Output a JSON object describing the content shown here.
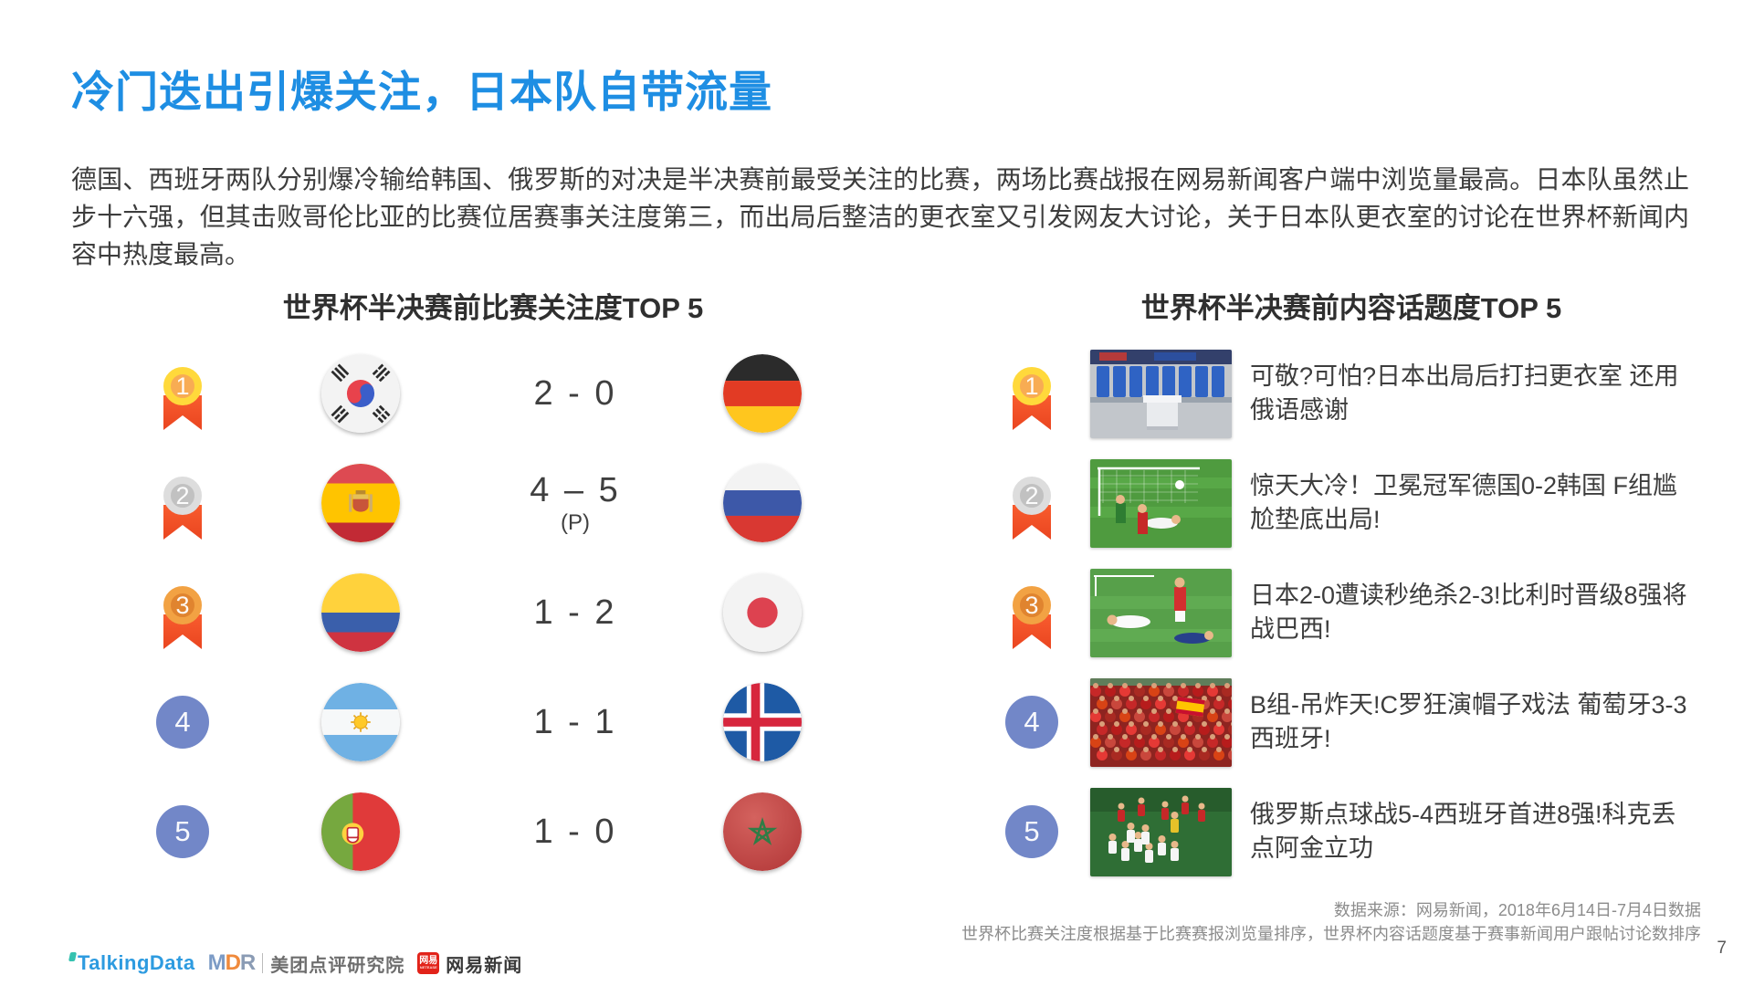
{
  "colors": {
    "title_blue": "#1e8ee3",
    "medal_gold_ring": "#ffd93b",
    "medal_gold_fill": "#f8ac53",
    "medal_silver_ring": "#dddddd",
    "medal_silver_fill": "#c1c1c1",
    "medal_bronze_ring": "#f2a243",
    "medal_bronze_fill": "#e0842f",
    "medal_plain_blue": "#7287c8",
    "ribbon_orange": "#f4502b",
    "netease_red": "#e2231a",
    "talkingdata_blue": "#2d9be0"
  },
  "slide": {
    "title": "冷门迭出引爆关注，日本队自带流量",
    "body": "德国、西班牙两队分别爆冷输给韩国、俄罗斯的对决是半决赛前最受关注的比赛，两场比赛战报在网易新闻客户端中浏览量最高。日本队虽然止步十六强，但其击败哥伦比亚的比赛位居赛事关注度第三，而出局后整洁的更衣室又引发网友大讨论，关于日本队更衣室的讨论在世界杯新闻内容中热度最高。",
    "page_number": "7"
  },
  "left_panel": {
    "title": "世界杯半决赛前比赛关注度TOP 5",
    "rows": [
      {
        "rank": "1",
        "home_flag": "south-korea",
        "home_team": "韩国",
        "score": "2 - 0",
        "score_note": "",
        "away_flag": "germany",
        "away_team": "德国"
      },
      {
        "rank": "2",
        "home_flag": "spain",
        "home_team": "西班牙",
        "score": "4 – 5",
        "score_note": "(P)",
        "away_flag": "russia",
        "away_team": "俄罗斯"
      },
      {
        "rank": "3",
        "home_flag": "colombia",
        "home_team": "哥伦比亚",
        "score": "1 - 2",
        "score_note": "",
        "away_flag": "japan",
        "away_team": "日本"
      },
      {
        "rank": "4",
        "home_flag": "argentina",
        "home_team": "阿根廷",
        "score": "1 - 1",
        "score_note": "",
        "away_flag": "iceland",
        "away_team": "冰岛"
      },
      {
        "rank": "5",
        "home_flag": "portugal",
        "home_team": "葡萄牙",
        "score": "1 - 0",
        "score_note": "",
        "away_flag": "morocco",
        "away_team": "摩洛哥"
      }
    ]
  },
  "right_panel": {
    "title": "世界杯半决赛前内容话题度TOP 5",
    "rows": [
      {
        "rank": "1",
        "image": "locker-room",
        "headline": "可敬?可怕?日本出局后打扫更衣室 还用俄语感谢"
      },
      {
        "rank": "2",
        "image": "goal-scene",
        "headline": "惊天大冷！卫冕冠军德国0-2韩国 F组尴尬垫底出局!"
      },
      {
        "rank": "3",
        "image": "players-down",
        "headline": "日本2-0遭读秒绝杀2-3!比利时晋级8强将战巴西!"
      },
      {
        "rank": "4",
        "image": "fans-crowd",
        "headline": "B组-吊炸天!C罗狂演帽子戏法 葡萄牙3-3西班牙!"
      },
      {
        "rank": "5",
        "image": "celebration",
        "headline": "俄罗斯点球战5-4西班牙首进8强!科克丢点阿金立功"
      }
    ]
  },
  "footer": {
    "source_line1": "数据来源：网易新闻，2018年6月14日-7月4日数据",
    "source_line2": "世界杯比赛关注度根据基于比赛赛报浏览量排序，世界杯内容话题度基于赛事新闻用户跟帖讨论数排序",
    "logos": {
      "talkingdata": "TalkingData",
      "mdr": "MDR",
      "meituan_institute": "美团点评研究院",
      "netease_badge": "网易",
      "netease_news": "网易新闻"
    }
  }
}
